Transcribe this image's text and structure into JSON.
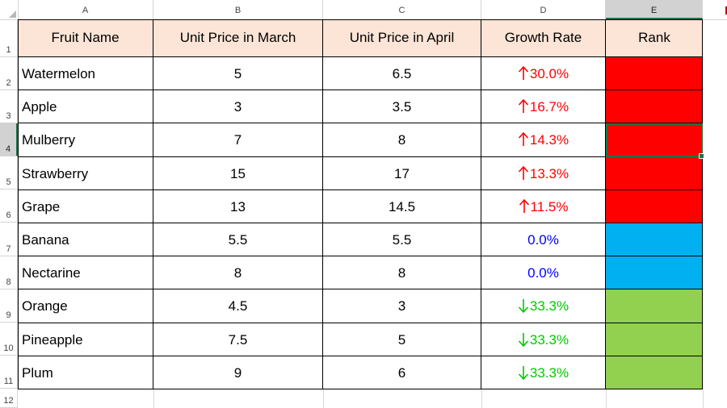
{
  "columns": [
    "A",
    "B",
    "C",
    "D",
    "E"
  ],
  "rows": [
    "1",
    "2",
    "3",
    "4",
    "5",
    "6",
    "7",
    "8",
    "9",
    "10",
    "11",
    "12"
  ],
  "headers": {
    "fruit": "Fruit Name",
    "march": "Unit Price in March",
    "april": "Unit Price in April",
    "growth": "Growth Rate",
    "rank": "Rank"
  },
  "data": [
    {
      "fruit": "Watermelon",
      "march": "5",
      "april": "6.5",
      "growth": "30.0%",
      "trend": "up",
      "rank_color": "#ff0000"
    },
    {
      "fruit": "Apple",
      "march": "3",
      "april": "3.5",
      "growth": "16.7%",
      "trend": "up",
      "rank_color": "#ff0000"
    },
    {
      "fruit": "Mulberry",
      "march": "7",
      "april": "8",
      "growth": "14.3%",
      "trend": "up",
      "rank_color": "#ff0000"
    },
    {
      "fruit": "Strawberry",
      "march": "15",
      "april": "17",
      "growth": "13.3%",
      "trend": "up",
      "rank_color": "#ff0000"
    },
    {
      "fruit": "Grape",
      "march": "13",
      "april": "14.5",
      "growth": "11.5%",
      "trend": "up",
      "rank_color": "#ff0000"
    },
    {
      "fruit": "Banana",
      "march": "5.5",
      "april": "5.5",
      "growth": "0.0%",
      "trend": "flat",
      "rank_color": "#00b0f0"
    },
    {
      "fruit": "Nectarine",
      "march": "8",
      "april": "8",
      "growth": "0.0%",
      "trend": "flat",
      "rank_color": "#00b0f0"
    },
    {
      "fruit": "Orange",
      "march": "4.5",
      "april": "3",
      "growth": "33.3%",
      "trend": "down",
      "rank_color": "#92d050"
    },
    {
      "fruit": "Pineapple",
      "march": "7.5",
      "april": "5",
      "growth": "33.3%",
      "trend": "down",
      "rank_color": "#92d050"
    },
    {
      "fruit": "Plum",
      "march": "9",
      "april": "6",
      "growth": "33.3%",
      "trend": "down",
      "rank_color": "#92d050"
    }
  ],
  "selected_cell": "E4",
  "colors": {
    "header_fill": "#fce4d6",
    "up": "#ff0000",
    "flat": "#0000ff",
    "down": "#00c800",
    "selection": "#217346"
  }
}
